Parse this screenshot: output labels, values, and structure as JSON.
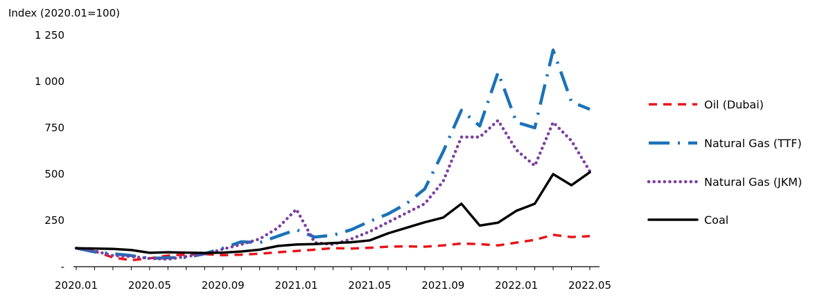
{
  "chart_data": {
    "type": "line",
    "title": "",
    "ylabel": "Index (2020.01=100)",
    "xlabel": "",
    "ylim": [
      0,
      1250
    ],
    "yticks": [
      {
        "value": 0,
        "label": "-"
      },
      {
        "value": 250,
        "label": "250"
      },
      {
        "value": 500,
        "label": "500"
      },
      {
        "value": 750,
        "label": "750"
      },
      {
        "value": 1000,
        "label": "1 000"
      },
      {
        "value": 1250,
        "label": "1 250"
      }
    ],
    "x": [
      "2020.01",
      "2020.02",
      "2020.03",
      "2020.04",
      "2020.05",
      "2020.06",
      "2020.07",
      "2020.08",
      "2020.09",
      "2020.10",
      "2020.11",
      "2020.12",
      "2021.01",
      "2021.02",
      "2021.03",
      "2021.04",
      "2021.05",
      "2021.06",
      "2021.07",
      "2021.08",
      "2021.09",
      "2021.10",
      "2021.11",
      "2021.12",
      "2022.01",
      "2022.02",
      "2022.03",
      "2022.04",
      "2022.05"
    ],
    "xticks": [
      {
        "index": 0,
        "label": "2020.01"
      },
      {
        "index": 4,
        "label": "2020.05"
      },
      {
        "index": 8,
        "label": "2020.09"
      },
      {
        "index": 12,
        "label": "2021.01"
      },
      {
        "index": 16,
        "label": "2021.05"
      },
      {
        "index": 20,
        "label": "2021.09"
      },
      {
        "index": 24,
        "label": "2022.01"
      },
      {
        "index": 28,
        "label": "2022.05"
      }
    ],
    "legend_position": "right",
    "series": [
      {
        "name": "Oil (Dubai)",
        "color": "#e8141b",
        "style": "dashed",
        "values": [
          100,
          83,
          50,
          35,
          45,
          60,
          65,
          68,
          62,
          65,
          70,
          78,
          85,
          92,
          100,
          98,
          102,
          108,
          110,
          108,
          115,
          125,
          122,
          115,
          130,
          145,
          172,
          160,
          165
        ]
      },
      {
        "name": "Natural Gas (TTF)",
        "color": "#1a72b8",
        "style": "dashdot",
        "values": [
          100,
          80,
          70,
          60,
          45,
          48,
          50,
          70,
          100,
          135,
          130,
          165,
          200,
          160,
          170,
          200,
          245,
          285,
          340,
          420,
          620,
          845,
          760,
          1050,
          780,
          750,
          1170,
          890,
          850
        ]
      },
      {
        "name": "Natural Gas (JKM)",
        "color": "#7b3fa0",
        "style": "dotted",
        "values": [
          100,
          85,
          60,
          55,
          45,
          40,
          55,
          68,
          95,
          120,
          150,
          210,
          310,
          130,
          120,
          150,
          190,
          240,
          290,
          340,
          460,
          700,
          700,
          790,
          630,
          545,
          780,
          680,
          515
        ]
      },
      {
        "name": "Coal",
        "color": "#000000",
        "style": "solid",
        "values": [
          100,
          98,
          96,
          90,
          75,
          78,
          76,
          74,
          76,
          82,
          92,
          112,
          120,
          122,
          128,
          132,
          142,
          180,
          210,
          240,
          265,
          340,
          222,
          238,
          302,
          340,
          500,
          440,
          510
        ]
      }
    ]
  }
}
